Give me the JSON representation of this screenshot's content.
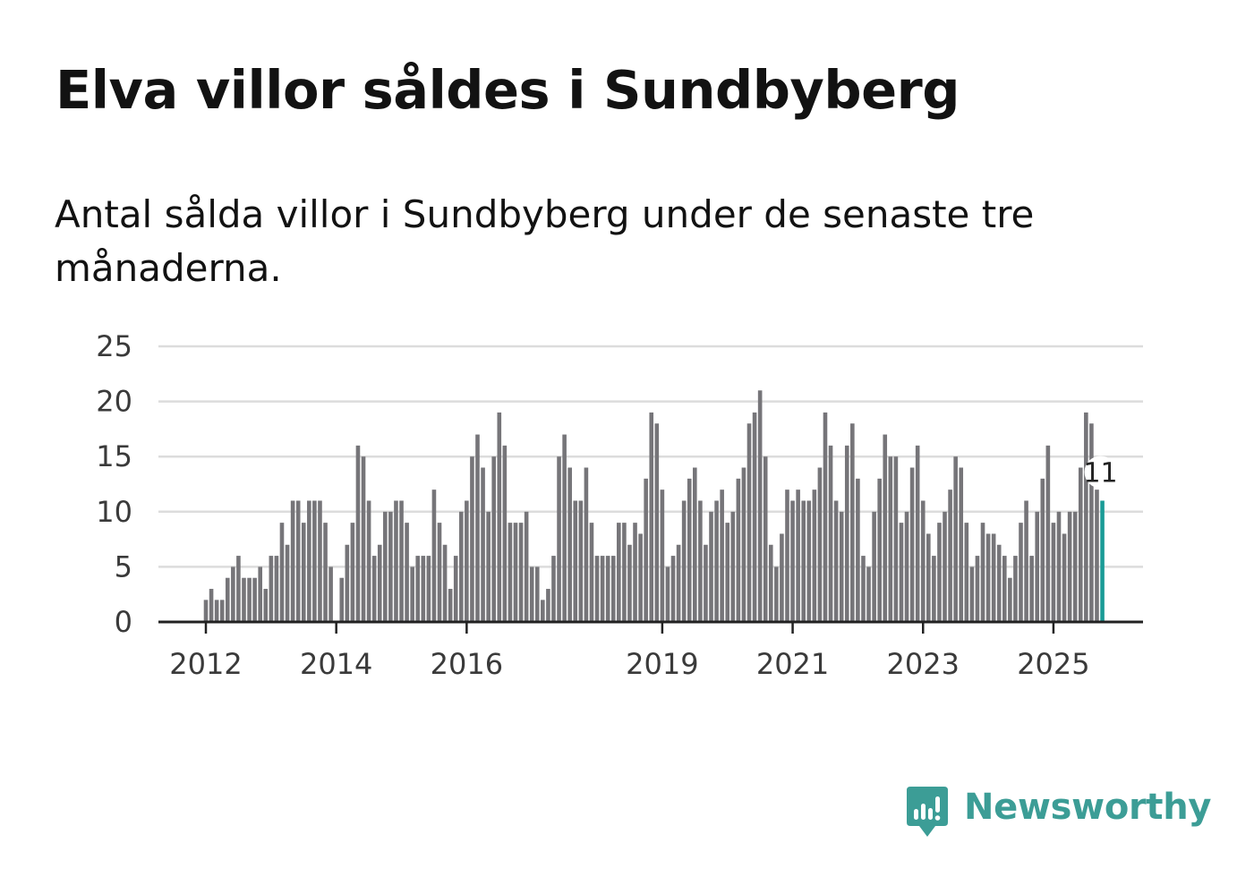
{
  "title": "Elva villor såldes i Sundbyberg",
  "subtitle": "Antal sålda villor i Sundbyberg under de senaste tre månaderna.",
  "brand": {
    "name": "Newsworthy",
    "color": "#3c9d96"
  },
  "colors": {
    "bar": "#767579",
    "highlight": "#1a9b96",
    "grid": "#dcdcdc",
    "axis": "#222222"
  },
  "chart_data": {
    "type": "bar",
    "title": "Elva villor såldes i Sundbyberg",
    "subtitle": "Antal sålda villor i Sundbyberg under de senaste tre månaderna.",
    "xlabel": "",
    "ylabel": "",
    "ylim": [
      0,
      25
    ],
    "yticks": [
      "0",
      "5",
      "10",
      "15",
      "20",
      "25"
    ],
    "xticks": [
      {
        "label": "2012",
        "index": 0
      },
      {
        "label": "2014",
        "index": 24
      },
      {
        "label": "2016",
        "index": 48
      },
      {
        "label": "2019",
        "index": 84
      },
      {
        "label": "2021",
        "index": 108
      },
      {
        "label": "2023",
        "index": 132
      },
      {
        "label": "2025",
        "index": 156
      }
    ],
    "start": "2012-01",
    "frequency": "monthly",
    "values": [
      2,
      3,
      2,
      2,
      4,
      5,
      6,
      4,
      4,
      4,
      5,
      3,
      6,
      6,
      9,
      7,
      11,
      11,
      9,
      11,
      11,
      11,
      9,
      5,
      0,
      4,
      7,
      9,
      16,
      15,
      11,
      6,
      7,
      10,
      10,
      11,
      11,
      9,
      5,
      6,
      6,
      6,
      12,
      9,
      7,
      3,
      6,
      10,
      11,
      15,
      17,
      14,
      10,
      15,
      19,
      16,
      9,
      9,
      9,
      10,
      5,
      5,
      2,
      3,
      6,
      15,
      17,
      14,
      11,
      11,
      14,
      9,
      6,
      6,
      6,
      6,
      9,
      9,
      7,
      9,
      8,
      13,
      19,
      18,
      12,
      5,
      6,
      7,
      11,
      13,
      14,
      11,
      7,
      10,
      11,
      12,
      9,
      10,
      13,
      14,
      18,
      19,
      21,
      15,
      7,
      5,
      8,
      12,
      11,
      12,
      11,
      11,
      12,
      14,
      19,
      16,
      11,
      10,
      16,
      18,
      13,
      6,
      5,
      10,
      13,
      17,
      15,
      15,
      9,
      10,
      14,
      16,
      11,
      8,
      6,
      9,
      10,
      12,
      15,
      14,
      9,
      5,
      6,
      9,
      8,
      8,
      7,
      6,
      4,
      6,
      9,
      11,
      6,
      10,
      13,
      16,
      9,
      10,
      8,
      10,
      10,
      14,
      19,
      18,
      12,
      11
    ],
    "highlight_index": 165,
    "highlight_label": "11"
  }
}
